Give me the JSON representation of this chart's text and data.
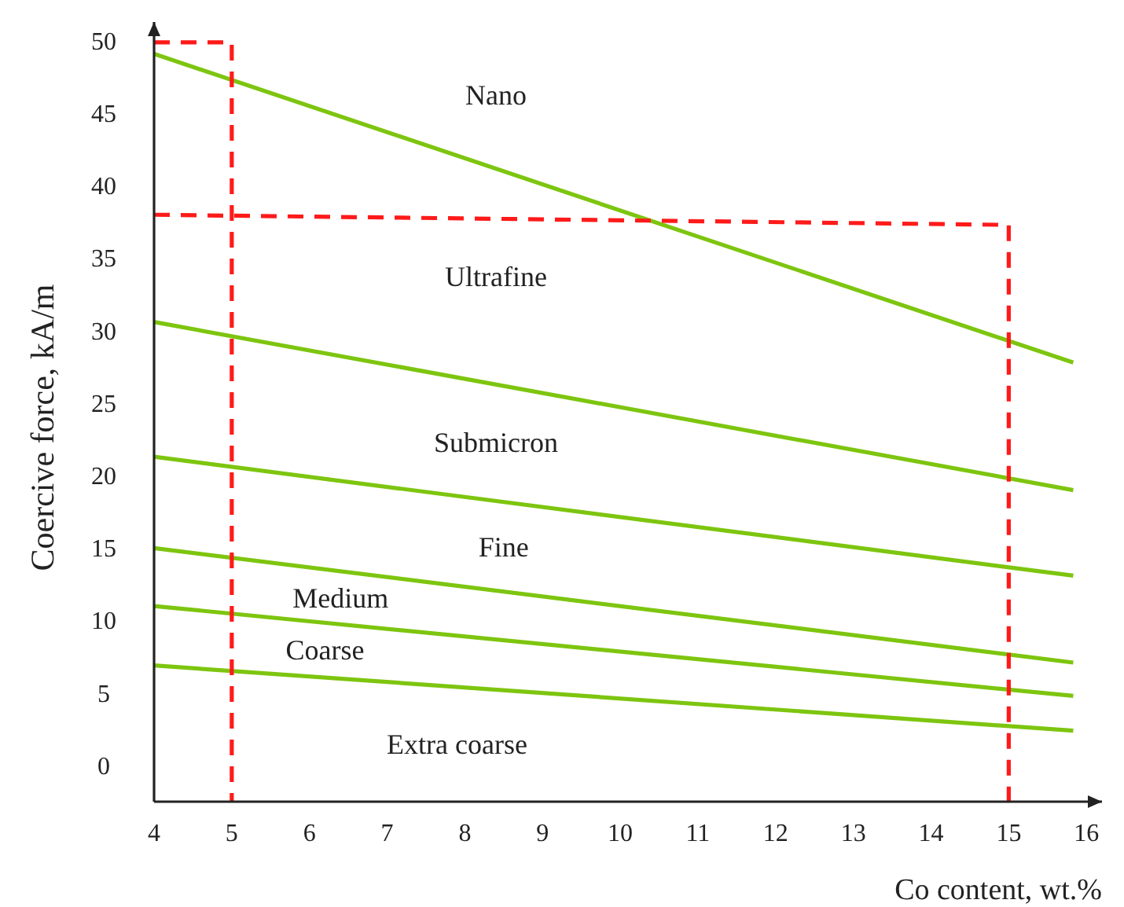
{
  "chart_data": {
    "type": "line",
    "xlabel": "Co content, wt.%",
    "ylabel": "Coercive force, kA/m",
    "xlim": [
      4,
      16.2
    ],
    "ylim": [
      -2.4,
      51.4
    ],
    "xticks": [
      4,
      5,
      6,
      7,
      8,
      9,
      10,
      11,
      12,
      13,
      14,
      15,
      16
    ],
    "yticks": [
      0,
      5,
      10,
      15,
      20,
      25,
      30,
      35,
      40,
      45,
      50
    ],
    "grid": false,
    "marker": "none",
    "series": [
      {
        "color": "#7dc50f",
        "x": [
          4,
          15.83
        ],
        "values": [
          49.2,
          27.9
        ]
      },
      {
        "color": "#7dc50f",
        "x": [
          4,
          15.83
        ],
        "values": [
          30.7,
          19.1
        ]
      },
      {
        "color": "#7dc50f",
        "x": [
          4,
          15.83
        ],
        "values": [
          21.4,
          13.2
        ]
      },
      {
        "color": "#7dc50f",
        "x": [
          4,
          15.83
        ],
        "values": [
          15.1,
          7.2
        ]
      },
      {
        "color": "#7dc50f",
        "x": [
          4,
          15.83
        ],
        "values": [
          11.1,
          4.9
        ]
      },
      {
        "color": "#7dc50f",
        "x": [
          4,
          15.83
        ],
        "values": [
          7.0,
          2.5
        ]
      },
      {
        "color": "#ff1a1a",
        "line_style": "dashed",
        "x": [
          4,
          5,
          5
        ],
        "values": [
          50,
          50,
          -2.4
        ]
      },
      {
        "color": "#ff1a1a",
        "line_style": "dashed",
        "x": [
          4,
          15,
          15
        ],
        "values": [
          38.1,
          37.4,
          -2.4
        ]
      }
    ],
    "annotations": [
      "Nano",
      "Ultrafine",
      "Submicron",
      "Fine",
      "Medium",
      "Coarse",
      "Extra coarse"
    ]
  }
}
